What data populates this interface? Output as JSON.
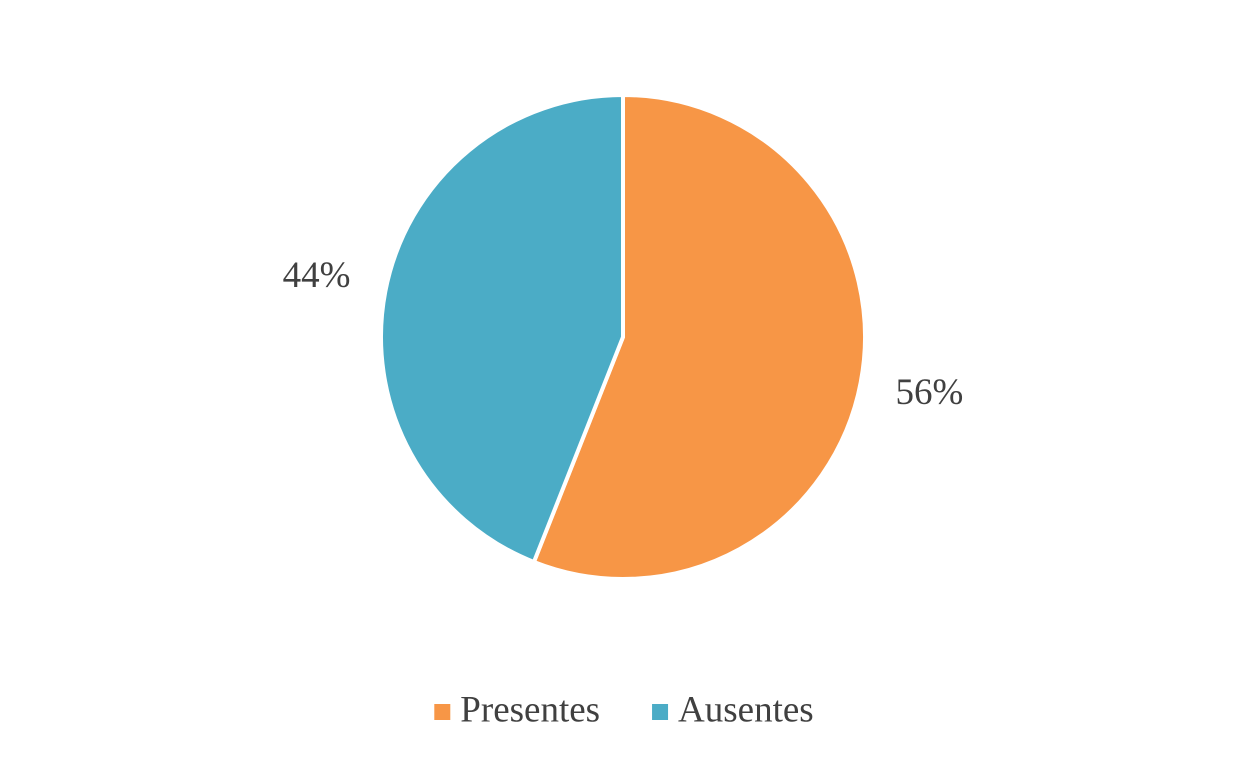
{
  "chart_data": {
    "type": "pie",
    "categories": [
      "Presentes",
      "Ausentes"
    ],
    "values": [
      56,
      44
    ],
    "value_labels": [
      "56%",
      "44%"
    ],
    "colors": [
      "#F79646",
      "#4BACC6"
    ],
    "legend": "bottom"
  }
}
